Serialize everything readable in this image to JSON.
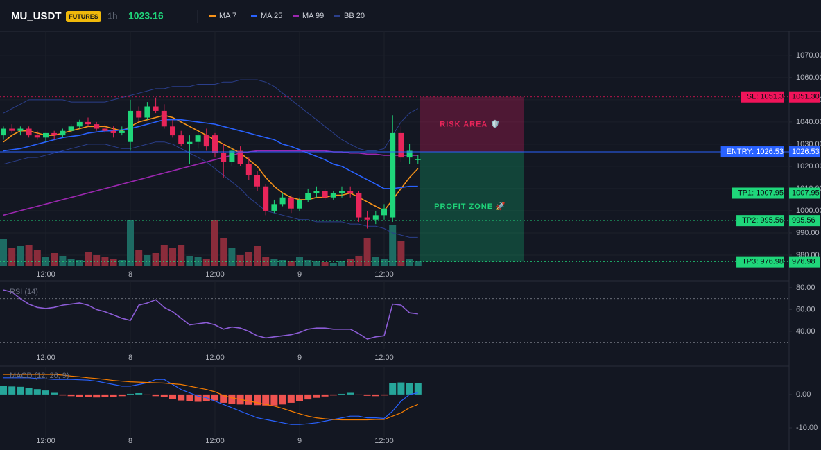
{
  "chart_data": [
    {
      "type": "candlestick",
      "title": "MU_USDT",
      "badge": "FUTURES",
      "interval": "1h",
      "last_price": 1023.16,
      "categories": [
        null,
        null,
        null,
        null,
        null,
        "12:00",
        null,
        null,
        null,
        null,
        null,
        null,
        null,
        null,
        null,
        "8",
        null,
        null,
        null,
        null,
        null,
        null,
        null,
        null,
        null,
        "12:00",
        null,
        null,
        null,
        null,
        null,
        null,
        null,
        null,
        null,
        "9",
        null,
        null,
        null,
        null,
        null,
        null,
        null,
        null,
        null,
        "12:00",
        null,
        null,
        null,
        null
      ],
      "open": [
        1034,
        1037,
        1036,
        1037,
        1034,
        1033,
        1035,
        1034,
        1036,
        1038,
        1040,
        1039,
        1037,
        1036,
        1035,
        1031,
        1045,
        1042,
        1047,
        1045,
        1038,
        1034,
        1030,
        1031,
        1034,
        1034,
        1026,
        1022,
        1027,
        1021,
        1016,
        1011,
        1000,
        1003,
        1006,
        1001,
        1005,
        1008,
        1009,
        1006,
        1008,
        1009,
        1008,
        997,
        996,
        998,
        997,
        1035,
        1024,
        1023
      ],
      "high": [
        1038,
        1039,
        1038,
        1038,
        1036,
        1035,
        1036,
        1037,
        1039,
        1041,
        1042,
        1040,
        1039,
        1038,
        1038,
        1050,
        1047,
        1049,
        1051,
        1048,
        1041,
        1036,
        1034,
        1036,
        1037,
        1035,
        1030,
        1029,
        1029,
        1024,
        1018,
        1012,
        1005,
        1008,
        1007,
        1006,
        1010,
        1011,
        1010,
        1009,
        1011,
        1011,
        1009,
        1000,
        1000,
        1003,
        1043,
        1038,
        1030,
        1025
      ],
      "low": [
        1032,
        1035,
        1034,
        1033,
        1032,
        1031,
        1032,
        1033,
        1035,
        1037,
        1038,
        1036,
        1035,
        1033,
        1034,
        1027,
        1040,
        1041,
        1044,
        1037,
        1033,
        1029,
        1021,
        1028,
        1027,
        1024,
        1015,
        1020,
        1020,
        1014,
        1009,
        998,
        999,
        1002,
        999,
        1000,
        1004,
        1006,
        1005,
        1005,
        1006,
        1006,
        995,
        992,
        994,
        996,
        995,
        1022,
        1021,
        1021
      ],
      "close": [
        1037,
        1036,
        1037,
        1034,
        1033,
        1035,
        1034,
        1036,
        1038,
        1040,
        1039,
        1037,
        1036,
        1035,
        1036,
        1045,
        1042,
        1047,
        1045,
        1038,
        1034,
        1030,
        1031,
        1034,
        1029,
        1026,
        1022,
        1027,
        1021,
        1016,
        1011,
        1000,
        1003,
        1006,
        1001,
        1005,
        1008,
        1009,
        1006,
        1008,
        1009,
        1008,
        997,
        996,
        998,
        1001,
        1035,
        1024,
        1027,
        1023.16
      ],
      "up_color": "#1fd67a",
      "down_color": "#e8255a",
      "volume": [
        38,
        25,
        28,
        30,
        22,
        12,
        18,
        14,
        10,
        8,
        20,
        15,
        12,
        10,
        8,
        66,
        22,
        15,
        18,
        30,
        25,
        30,
        14,
        12,
        10,
        66,
        40,
        25,
        15,
        20,
        28,
        12,
        10,
        8,
        6,
        12,
        8,
        6,
        5,
        4,
        6,
        10,
        14,
        40,
        12,
        10,
        58,
        35,
        10,
        6
      ],
      "volume_ylim": [
        0,
        338
      ],
      "volume_up_color": "#1d6b63",
      "volume_down_color": "#8a2c3b",
      "series": [
        {
          "name": "MA 7",
          "color": "#f7931a",
          "values": [
            1031,
            1034,
            1036,
            1036,
            1035,
            1034,
            1034,
            1035,
            1036,
            1037,
            1038,
            1038,
            1038,
            1037,
            1036,
            1038,
            1040,
            1041,
            1042,
            1043,
            1042,
            1040,
            1038,
            1036,
            1034,
            1032,
            1030,
            1028,
            1026,
            1023,
            1020,
            1015,
            1011,
            1008,
            1006,
            1005,
            1005,
            1006,
            1006,
            1007,
            1007,
            1008,
            1006,
            1004,
            1002,
            1000,
            1005,
            1010,
            1015,
            1019
          ]
        },
        {
          "name": "MA 25",
          "color": "#2962ff",
          "values": [
            1027,
            1027.5,
            1028,
            1029,
            1030,
            1031,
            1032,
            1033,
            1033.5,
            1034,
            1035,
            1035.5,
            1036,
            1036,
            1036.5,
            1037,
            1038,
            1039,
            1040,
            1041,
            1041,
            1041,
            1040.5,
            1040,
            1039.5,
            1039,
            1038,
            1037,
            1036,
            1035,
            1034,
            1033,
            1032,
            1030,
            1029,
            1027.5,
            1026,
            1024.5,
            1023,
            1021,
            1020,
            1018,
            1016,
            1014,
            1012,
            1010,
            1010,
            1010.5,
            1011,
            1011
          ]
        },
        {
          "name": "MA 99",
          "color": "#9c27b0",
          "values": [
            998,
            999,
            1000,
            1001,
            1002,
            1003,
            1004,
            1005,
            1006,
            1007,
            1008,
            1009,
            1010,
            1011,
            1012,
            1013,
            1014,
            1015,
            1016,
            1017,
            1018,
            1019,
            1020,
            1021,
            1022,
            1023,
            1024,
            1025,
            1026,
            1026.5,
            1027,
            1027,
            1027,
            1027,
            1027,
            1027,
            1027,
            1027,
            1027,
            1026.5,
            1026.5,
            1026,
            1026,
            1025.5,
            1025.5,
            1025,
            1025,
            1025,
            1025,
            1025
          ]
        },
        {
          "name": "BB 20",
          "color": "#2b3f8c",
          "upper": [
            1044,
            1046,
            1048,
            1050,
            1050,
            1050,
            1050,
            1050,
            1049,
            1049,
            1049,
            1049,
            1049,
            1050,
            1051,
            1052,
            1053,
            1054,
            1055,
            1055,
            1056,
            1056,
            1056,
            1057,
            1057,
            1057,
            1058,
            1058,
            1059,
            1059,
            1059,
            1058,
            1056,
            1053,
            1050,
            1047,
            1044,
            1041,
            1038,
            1035,
            1032,
            1030,
            1028,
            1027,
            1027,
            1028,
            1034,
            1040,
            1044,
            1046
          ],
          "lower": [
            1021,
            1022,
            1023,
            1024,
            1024,
            1025,
            1026,
            1027,
            1028,
            1029,
            1030,
            1030,
            1030,
            1029,
            1028,
            1028,
            1029,
            1030,
            1031,
            1031,
            1030,
            1028,
            1026,
            1024,
            1022,
            1019,
            1016,
            1013,
            1010,
            1006,
            1003,
            1000,
            999,
            998,
            997,
            996,
            996,
            995,
            995,
            995,
            995,
            994,
            994,
            993,
            993,
            992,
            990,
            989,
            988,
            988
          ]
        }
      ],
      "ylim": [
        975.3,
        1080.9
      ],
      "yticks": [
        {
          "value": 980,
          "label": "980.00"
        },
        {
          "value": 990,
          "label": "990.00"
        },
        {
          "value": 1000,
          "label": "1000.00"
        },
        {
          "value": 1010,
          "label": "1010.00"
        },
        {
          "value": 1020,
          "label": "1020.00"
        },
        {
          "value": 1030,
          "label": "1030.00"
        },
        {
          "value": 1040,
          "label": "1040.00"
        },
        {
          "value": 1050,
          "label": "1050.00"
        },
        {
          "value": 1060,
          "label": "1060.00"
        },
        {
          "value": 1070,
          "label": "1070.00"
        }
      ],
      "price_lines": [
        {
          "label": "SL: 1051.3",
          "value": 1051.3,
          "value_label": "1051.30",
          "color": "#f0145a"
        },
        {
          "label": "ENTRY: 1026.53",
          "value": 1026.53,
          "value_label": "1026.53",
          "color": "#2962ff"
        },
        {
          "label": "TP1: 1007.95",
          "value": 1007.95,
          "value_label": "1007.95",
          "color": "#1fd67a"
        },
        {
          "label": "TP2: 995.56",
          "value": 995.56,
          "value_label": "995.56",
          "color": "#1fd67a"
        },
        {
          "label": "TP3: 976.98",
          "value": 976.98,
          "value_label": "976.98",
          "color": "#1fd67a"
        }
      ],
      "risk_label": "RISK AREA 🛡️",
      "profit_label": "PROFIT ZONE 🚀"
    },
    {
      "type": "line",
      "title": "RSI (14)",
      "color": "#8c5cd6",
      "categories": [
        null,
        null,
        null,
        null,
        null,
        "12:00",
        null,
        null,
        null,
        null,
        null,
        null,
        null,
        null,
        null,
        "8",
        null,
        null,
        null,
        null,
        null,
        null,
        null,
        null,
        null,
        "12:00",
        null,
        null,
        null,
        null,
        null,
        null,
        null,
        null,
        null,
        "9",
        null,
        null,
        null,
        null,
        null,
        null,
        null,
        null,
        null,
        "12:00",
        null,
        null,
        null,
        null
      ],
      "values": [
        78,
        76,
        70,
        65,
        62,
        61,
        62,
        64,
        65,
        66,
        64,
        60,
        58,
        55,
        52,
        50,
        64,
        66,
        69,
        62,
        58,
        52,
        46,
        47,
        48,
        46,
        42,
        44,
        43,
        40,
        36,
        34,
        35,
        36,
        37,
        39,
        42,
        43,
        43,
        42,
        42,
        42,
        38,
        33,
        35,
        36,
        65,
        64,
        57,
        56
      ],
      "levels": [
        70,
        30
      ],
      "ylim": [
        24.1,
        86.3
      ],
      "yticks": [
        {
          "value": 80,
          "label": "80.00"
        },
        {
          "value": 60,
          "label": "60.00"
        },
        {
          "value": 40,
          "label": "40.00"
        }
      ]
    },
    {
      "type": "macd",
      "title": "MACD (12, 26, 9)",
      "categories": [
        null,
        null,
        null,
        null,
        null,
        "12:00",
        null,
        null,
        null,
        null,
        null,
        null,
        null,
        null,
        null,
        "8",
        null,
        null,
        null,
        null,
        null,
        null,
        null,
        null,
        null,
        "12:00",
        null,
        null,
        null,
        null,
        null,
        null,
        null,
        null,
        null,
        "9",
        null,
        null,
        null,
        null,
        null,
        null,
        null,
        null,
        null,
        "12:00",
        null,
        null,
        null,
        null
      ],
      "histogram": [
        2.5,
        2.4,
        2.3,
        2,
        1.6,
        1.2,
        0.5,
        -0.3,
        -0.5,
        -0.7,
        -0.8,
        -0.9,
        -0.8,
        -0.7,
        -0.5,
        0.2,
        0.4,
        -0.2,
        -0.5,
        -0.8,
        -1.3,
        -1.8,
        -2.0,
        -2.2,
        -2.0,
        -1.8,
        -2.5,
        -2.8,
        -3.0,
        -3.1,
        -3.2,
        -3.3,
        -3.3,
        -3.0,
        -2.5,
        -2,
        -1.5,
        -1,
        -0.6,
        -0.3,
        0.2,
        0.5,
        -0.2,
        -0.4,
        -0.5,
        -0.3,
        3.5,
        3.6,
        3.5,
        3.4
      ],
      "macd": [
        5,
        5,
        5,
        5,
        4.8,
        4.7,
        4.5,
        4.5,
        4.5,
        4.4,
        4.3,
        4,
        3.5,
        3,
        2.5,
        2.5,
        3,
        3.5,
        4.5,
        4.5,
        3,
        1.5,
        0.5,
        -0.5,
        -1,
        -2,
        -3,
        -4,
        -5,
        -6,
        -7,
        -7.5,
        -8,
        -8.5,
        -9,
        -9,
        -8.8,
        -8.5,
        -8,
        -7.5,
        -7,
        -6.5,
        -6.5,
        -7,
        -7,
        -7.2,
        -5,
        -2,
        0,
        0.5
      ],
      "signal": [
        6,
        6,
        6,
        6,
        6,
        6,
        6,
        5.8,
        5.5,
        5.3,
        5,
        4.8,
        4.5,
        4.2,
        4,
        3.8,
        3.7,
        3.6,
        3.5,
        3.4,
        3.2,
        3,
        2.5,
        2,
        1.5,
        0.8,
        -0.3,
        -1,
        -1.5,
        -2,
        -2.5,
        -3,
        -3.5,
        -4.2,
        -5,
        -5.8,
        -6.5,
        -7,
        -7.3,
        -7.5,
        -7.6,
        -7.6,
        -7.6,
        -7.6,
        -7.5,
        -7.5,
        -6.5,
        -5.5,
        -4,
        -3
      ],
      "macd_color": "#2962ff",
      "signal_color": "#f57c00",
      "positive_color": "#26a69a",
      "negative_color": "#ef5350",
      "ylim": [
        -12.7,
        8.5
      ],
      "yticks": [
        {
          "value": 0,
          "label": "0.00"
        },
        {
          "value": -10,
          "label": "-10.00"
        }
      ]
    }
  ]
}
